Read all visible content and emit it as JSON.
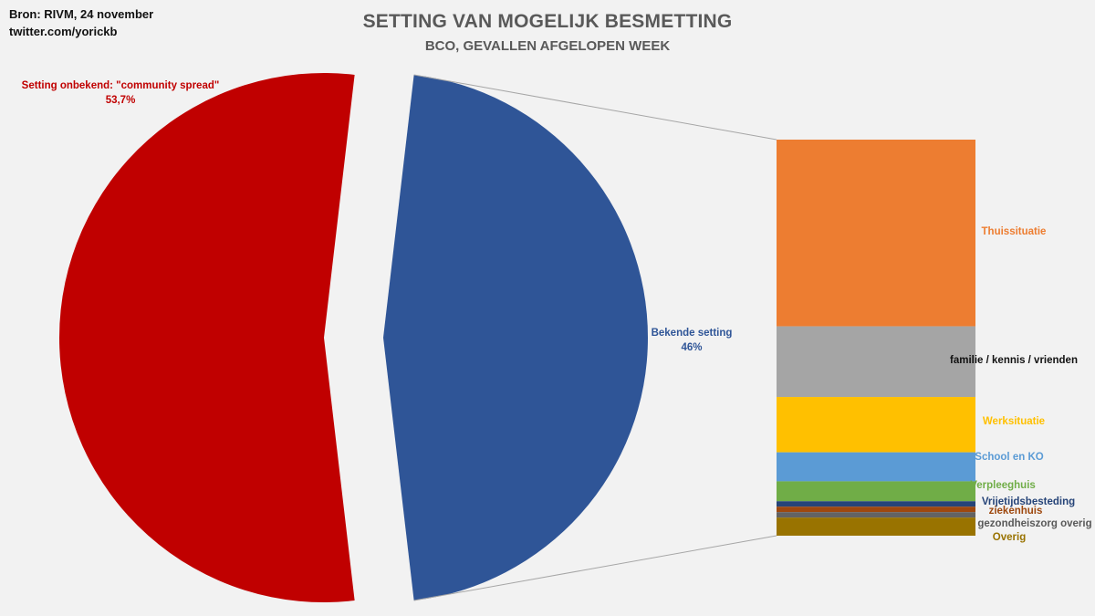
{
  "source": {
    "line1": "Bron: RIVM, 24 november",
    "line2": "twitter.com/yorickb"
  },
  "title": "SETTING VAN MOGELIJK BESMETTING",
  "subtitle": "BCO, GEVALLEN AFGELOPEN WEEK",
  "chart_data": {
    "type": "bar-of-pie",
    "pie": {
      "slices": [
        {
          "label_line1": "Setting onbekend: \"community spread\"",
          "label_line2": "53,7%",
          "value": 53.7,
          "color": "#C00000"
        },
        {
          "label_line1": "Bekende setting",
          "label_line2": "46%",
          "value": 46.3,
          "color": "#2F5597"
        }
      ]
    },
    "bar": {
      "segments": [
        {
          "label": "Thuissituatie",
          "value": 20.6,
          "color": "#ED7D31",
          "label_color": "#ED7D31"
        },
        {
          "label": "familie  /  kennis  /  vrienden",
          "value": 7.8,
          "color": "#A5A5A5",
          "label_color": "#111111"
        },
        {
          "label": "Werksituatie",
          "value": 6.1,
          "color": "#FFC000",
          "label_color": "#FFC000"
        },
        {
          "label": "School  en KO",
          "value": 3.2,
          "color": "#5B9BD5",
          "label_color": "#5B9BD5"
        },
        {
          "label": "Verpleeghuis",
          "value": 2.2,
          "color": "#70AD47",
          "label_color": "#70AD47"
        },
        {
          "label": "Vrijetijdsbesteding",
          "value": 0.6,
          "color": "#264478",
          "label_color": "#264478"
        },
        {
          "label": "ziekenhuis",
          "value": 0.6,
          "color": "#9E480E",
          "label_color": "#9E480E"
        },
        {
          "label": "gezondheiszorg  overig",
          "value": 0.6,
          "color": "#636363",
          "label_color": "#595959"
        },
        {
          "label": "Overig",
          "value": 2.0,
          "color": "#997300",
          "label_color": "#997300"
        }
      ]
    }
  }
}
